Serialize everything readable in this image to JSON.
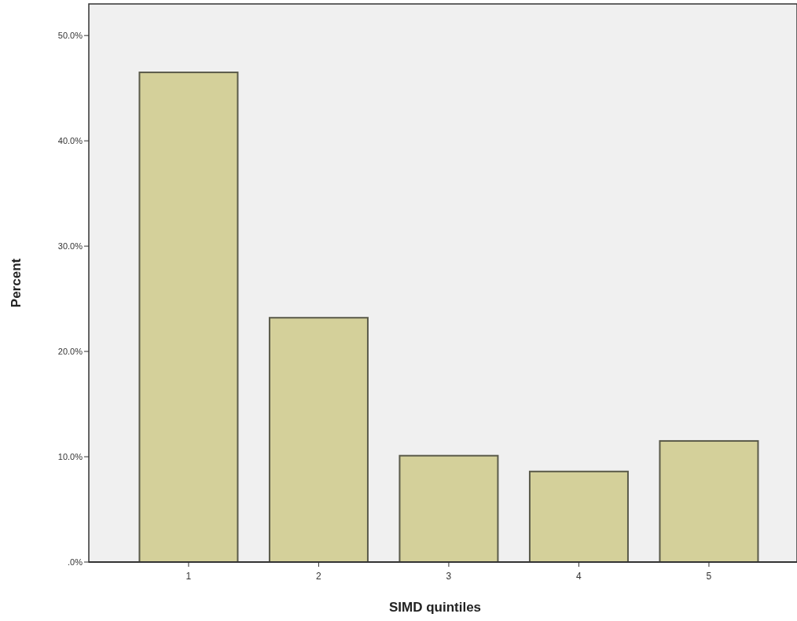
{
  "chart_data": {
    "type": "bar",
    "xlabel": "SIMD quintiles",
    "ylabel": "Percent",
    "categories": [
      "1",
      "2",
      "3",
      "4",
      "5"
    ],
    "values": [
      46.5,
      23.2,
      10.1,
      8.6,
      11.5
    ],
    "color": "#d4d09a",
    "ylim": [
      0,
      53
    ],
    "yticks": [
      {
        "value": 0,
        "label": ".0%"
      },
      {
        "value": 10,
        "label": "10.0%"
      },
      {
        "value": 20,
        "label": "20.0%"
      },
      {
        "value": 30,
        "label": "30.0%"
      },
      {
        "value": 40,
        "label": "40.0%"
      },
      {
        "value": 50,
        "label": "50.0%"
      }
    ],
    "grid": false
  }
}
